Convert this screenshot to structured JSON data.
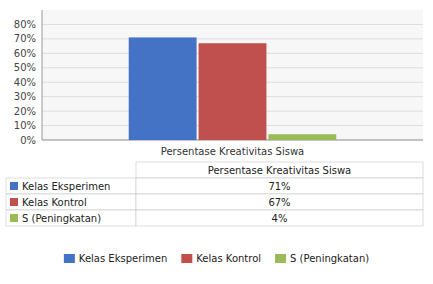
{
  "chart_data": {
    "type": "bar",
    "xlabel": "Persentase Kreativitas Siswa",
    "categories": [
      null
    ],
    "series": [
      {
        "name": "Kelas Eksperimen",
        "color": "#4472C4",
        "values": [
          0.71
        ],
        "value_labels": [
          "71%"
        ]
      },
      {
        "name": "Kelas Kontrol",
        "color": "#C0504D",
        "values": [
          0.67
        ],
        "value_labels": [
          "67%"
        ]
      },
      {
        "name": "S (Peningkatan)",
        "color": "#9BBB59",
        "values": [
          0.04
        ],
        "value_labels": [
          "4%"
        ]
      }
    ],
    "ylim": [
      0,
      0.9
    ],
    "yticks": [
      {
        "value": 0.0,
        "label": "0%"
      },
      {
        "value": 0.1,
        "label": "10%"
      },
      {
        "value": 0.2,
        "label": "20%"
      },
      {
        "value": 0.3,
        "label": "30%"
      },
      {
        "value": 0.4,
        "label": "40%"
      },
      {
        "value": 0.5,
        "label": "50%"
      },
      {
        "value": 0.6,
        "label": "60%"
      },
      {
        "value": 0.7,
        "label": "70%"
      },
      {
        "value": 0.8,
        "label": "80%"
      }
    ],
    "grid": true,
    "data_labels": true,
    "legend": "bottom"
  }
}
